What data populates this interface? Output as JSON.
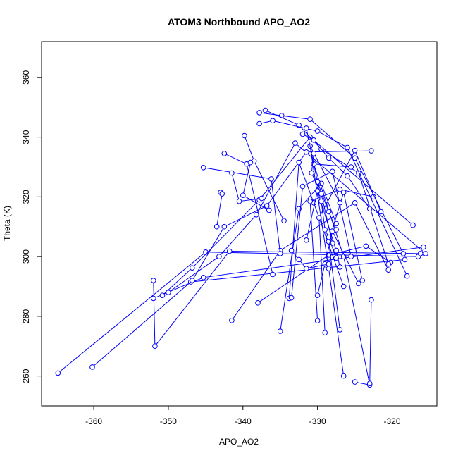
{
  "chart_data": {
    "type": "scatter",
    "title": "ATOM3 Northbound APO_AO2",
    "xlabel": "APO_AO2",
    "ylabel": "Theta (K)",
    "xlim": [
      -367,
      -314
    ],
    "ylim": [
      250,
      372
    ],
    "xticks": [
      -360,
      -350,
      -340,
      -330,
      -320
    ],
    "yticks": [
      260,
      280,
      300,
      320,
      340,
      360
    ],
    "grid": false,
    "color": "#0000ff",
    "marker": "open-circle",
    "connected": true,
    "series": [
      {
        "values": [
          {
            "x": -364.8,
            "y": 261.0
          },
          {
            "x": -345.0,
            "y": 301.5
          },
          {
            "x": -316.5,
            "y": 300.0
          }
        ]
      },
      {
        "values": [
          {
            "x": -360.2,
            "y": 263.0
          },
          {
            "x": -347.0,
            "y": 291.5
          },
          {
            "x": -318.3,
            "y": 299.0
          }
        ]
      },
      {
        "values": [
          {
            "x": -352.0,
            "y": 292.0
          },
          {
            "x": -351.8,
            "y": 270.0
          },
          {
            "x": -341.8,
            "y": 301.8
          },
          {
            "x": -316.2,
            "y": 301.0
          }
        ]
      },
      {
        "values": [
          {
            "x": -352.0,
            "y": 286.0
          },
          {
            "x": -345.3,
            "y": 293.0
          },
          {
            "x": -315.8,
            "y": 303.2
          }
        ]
      },
      {
        "values": [
          {
            "x": -350.8,
            "y": 287.0
          },
          {
            "x": -346.8,
            "y": 296.2
          },
          {
            "x": -337.8,
            "y": 319.0
          },
          {
            "x": -331.0,
            "y": 340.0
          },
          {
            "x": -317.2,
            "y": 310.5
          }
        ]
      },
      {
        "values": [
          {
            "x": -350.0,
            "y": 288.0
          },
          {
            "x": -343.2,
            "y": 300.0
          },
          {
            "x": -338.2,
            "y": 314.0
          },
          {
            "x": -333.0,
            "y": 338.0
          },
          {
            "x": -315.5,
            "y": 301.0
          }
        ]
      },
      {
        "values": [
          {
            "x": -346.8,
            "y": 292.0
          },
          {
            "x": -342.5,
            "y": 310.0
          },
          {
            "x": -336.8,
            "y": 317.0
          },
          {
            "x": -331.5,
            "y": 335.0
          },
          {
            "x": -322.8,
            "y": 335.4
          }
        ]
      },
      {
        "values": [
          {
            "x": -341.5,
            "y": 278.6
          },
          {
            "x": -335.0,
            "y": 302.0
          },
          {
            "x": -325.0,
            "y": 318.0
          },
          {
            "x": -320.5,
            "y": 295.5
          }
        ]
      },
      {
        "values": [
          {
            "x": -338.0,
            "y": 284.5
          },
          {
            "x": -328.5,
            "y": 300.5
          },
          {
            "x": -323.5,
            "y": 303.5
          },
          {
            "x": -320.2,
            "y": 298.0
          }
        ]
      },
      {
        "values": [
          {
            "x": -345.3,
            "y": 329.8
          },
          {
            "x": -336.2,
            "y": 326.0
          },
          {
            "x": -335.0,
            "y": 301.0
          }
        ]
      },
      {
        "values": [
          {
            "x": -343.0,
            "y": 321.5
          },
          {
            "x": -342.8,
            "y": 321.0
          },
          {
            "x": -343.5,
            "y": 310.0
          }
        ]
      },
      {
        "values": [
          {
            "x": -342.5,
            "y": 334.5
          },
          {
            "x": -339.5,
            "y": 331.0
          },
          {
            "x": -336.0,
            "y": 294.0
          }
        ]
      },
      {
        "values": [
          {
            "x": -341.5,
            "y": 328.0
          },
          {
            "x": -340.5,
            "y": 318.5
          },
          {
            "x": -337.5,
            "y": 319.5
          }
        ]
      },
      {
        "values": [
          {
            "x": -339.8,
            "y": 340.5
          },
          {
            "x": -338.5,
            "y": 332.0
          },
          {
            "x": -334.5,
            "y": 312.0
          }
        ]
      },
      {
        "values": [
          {
            "x": -339.0,
            "y": 331.5
          },
          {
            "x": -340.0,
            "y": 320.5
          },
          {
            "x": -336.5,
            "y": 315.5
          }
        ]
      },
      {
        "values": [
          {
            "x": -337.8,
            "y": 348.2
          },
          {
            "x": -334.8,
            "y": 347.2
          },
          {
            "x": -331.0,
            "y": 346.0
          },
          {
            "x": -325.0,
            "y": 333.0
          },
          {
            "x": -318.5,
            "y": 301.0
          }
        ]
      },
      {
        "values": [
          {
            "x": -337.0,
            "y": 349.0
          },
          {
            "x": -332.5,
            "y": 344.0
          },
          {
            "x": -329.5,
            "y": 336.0
          },
          {
            "x": -324.5,
            "y": 328.0
          },
          {
            "x": -320.5,
            "y": 297.5
          }
        ]
      },
      {
        "values": [
          {
            "x": -337.8,
            "y": 344.5
          },
          {
            "x": -336.0,
            "y": 345.5
          },
          {
            "x": -330.0,
            "y": 342.0
          },
          {
            "x": -326.0,
            "y": 336.5
          },
          {
            "x": -318.0,
            "y": 293.5
          }
        ]
      },
      {
        "values": [
          {
            "x": -335.0,
            "y": 275.0
          },
          {
            "x": -332.5,
            "y": 316.0
          },
          {
            "x": -329.5,
            "y": 324.5
          },
          {
            "x": -327.5,
            "y": 311.0
          }
        ]
      },
      {
        "values": [
          {
            "x": -333.8,
            "y": 286.0
          },
          {
            "x": -332.5,
            "y": 331.5
          },
          {
            "x": -330.5,
            "y": 318.0
          },
          {
            "x": -326.5,
            "y": 290.0
          }
        ]
      },
      {
        "values": [
          {
            "x": -333.5,
            "y": 286.2
          },
          {
            "x": -332.0,
            "y": 323.5
          },
          {
            "x": -328.0,
            "y": 328.5
          },
          {
            "x": -325.5,
            "y": 300.0
          }
        ]
      },
      {
        "values": [
          {
            "x": -330.0,
            "y": 278.5
          },
          {
            "x": -331.0,
            "y": 318.5
          },
          {
            "x": -327.0,
            "y": 322.5
          },
          {
            "x": -322.5,
            "y": 320.0
          }
        ]
      },
      {
        "values": [
          {
            "x": -329.0,
            "y": 274.5
          },
          {
            "x": -329.8,
            "y": 313.0
          },
          {
            "x": -325.0,
            "y": 335.5
          },
          {
            "x": -321.5,
            "y": 315.0
          }
        ]
      },
      {
        "values": [
          {
            "x": -327.0,
            "y": 275.5
          },
          {
            "x": -328.5,
            "y": 305.0
          },
          {
            "x": -326.5,
            "y": 321.5
          },
          {
            "x": -324.0,
            "y": 292.0
          }
        ]
      },
      {
        "values": [
          {
            "x": -326.5,
            "y": 260.0
          },
          {
            "x": -328.5,
            "y": 296.0
          },
          {
            "x": -331.0,
            "y": 337.0
          },
          {
            "x": -327.0,
            "y": 318.0
          }
        ]
      },
      {
        "values": [
          {
            "x": -325.0,
            "y": 258.0
          },
          {
            "x": -323.0,
            "y": 257.0
          },
          {
            "x": -326.5,
            "y": 300.0
          },
          {
            "x": -330.5,
            "y": 331.0
          },
          {
            "x": -325.5,
            "y": 330.0
          }
        ]
      },
      {
        "values": [
          {
            "x": -322.8,
            "y": 285.5
          },
          {
            "x": -323.0,
            "y": 257.5
          }
        ]
      },
      {
        "values": [
          {
            "x": -330.0,
            "y": 287.0
          },
          {
            "x": -329.0,
            "y": 297.5
          },
          {
            "x": -328.0,
            "y": 308.5
          },
          {
            "x": -324.5,
            "y": 291.0
          }
        ]
      },
      {
        "values": [
          {
            "x": -331.5,
            "y": 305.5
          },
          {
            "x": -330.0,
            "y": 322.0
          },
          {
            "x": -327.5,
            "y": 302.0
          },
          {
            "x": -327.0,
            "y": 296.5
          }
        ]
      },
      {
        "values": [
          {
            "x": -333.5,
            "y": 302.0
          },
          {
            "x": -332.5,
            "y": 299.0
          },
          {
            "x": -331.5,
            "y": 296.0
          },
          {
            "x": -328.5,
            "y": 297.5
          }
        ]
      },
      {
        "values": [
          {
            "x": -332.0,
            "y": 341.0
          },
          {
            "x": -330.5,
            "y": 339.0
          },
          {
            "x": -328.5,
            "y": 333.0
          },
          {
            "x": -326.0,
            "y": 327.0
          },
          {
            "x": -323.0,
            "y": 316.0
          }
        ]
      },
      {
        "values": [
          {
            "x": -331.5,
            "y": 343.0
          },
          {
            "x": -330.0,
            "y": 325.0
          },
          {
            "x": -328.5,
            "y": 315.0
          },
          {
            "x": -327.5,
            "y": 309.0
          }
        ]
      },
      {
        "values": [
          {
            "x": -330.5,
            "y": 334.5
          },
          {
            "x": -330.8,
            "y": 328.0
          },
          {
            "x": -329.5,
            "y": 321.0
          },
          {
            "x": -328.0,
            "y": 304.5
          }
        ]
      },
      {
        "values": [
          {
            "x": -329.5,
            "y": 318.5
          },
          {
            "x": -329.0,
            "y": 309.0
          },
          {
            "x": -328.5,
            "y": 306.5
          },
          {
            "x": -327.5,
            "y": 299.5
          }
        ]
      }
    ]
  }
}
